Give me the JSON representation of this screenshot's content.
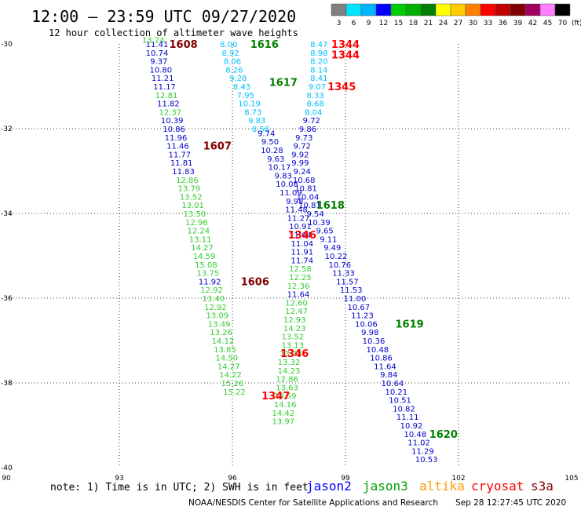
{
  "header": {
    "title": "12:00 – 23:59 UTC 09/27/2020",
    "subtitle": "12 hour collection of altimeter wave heights"
  },
  "legend": {
    "unit": "(ft)",
    "bins": [
      {
        "label": "3",
        "color": "#808080"
      },
      {
        "label": "6",
        "color": "#00e5ff"
      },
      {
        "label": "9",
        "color": "#00b4ff"
      },
      {
        "label": "12",
        "color": "#0000ff"
      },
      {
        "label": "15",
        "color": "#00cc00"
      },
      {
        "label": "18",
        "color": "#00b000"
      },
      {
        "label": "21",
        "color": "#008000"
      },
      {
        "label": "24",
        "color": "#ffff00"
      },
      {
        "label": "27",
        "color": "#ffcc00"
      },
      {
        "label": "30",
        "color": "#ff8000"
      },
      {
        "label": "33",
        "color": "#ff0000"
      },
      {
        "label": "36",
        "color": "#c00000"
      },
      {
        "label": "39",
        "color": "#800000"
      },
      {
        "label": "42",
        "color": "#a00060"
      },
      {
        "label": "45",
        "color": "#ff80ff"
      },
      {
        "label": "70",
        "color": "#000000"
      }
    ]
  },
  "map": {
    "lon_ticks": [
      "90",
      "93",
      "96",
      "99",
      "102",
      "105"
    ],
    "lat_ticks": [
      "-30",
      "-32",
      "-34",
      "-36",
      "-38",
      "-40"
    ]
  },
  "tracks": [
    {
      "id": "a",
      "color": "#00c0ff",
      "points": [
        [
          95.9,
          -30.0,
          "8.00"
        ],
        [
          95.95,
          -30.2,
          "8.92"
        ],
        [
          96.0,
          -30.4,
          "8.06"
        ],
        [
          96.05,
          -30.6,
          "8.26"
        ],
        [
          96.15,
          -30.8,
          "9.28"
        ],
        [
          96.25,
          -31.0,
          "8.43"
        ],
        [
          96.35,
          -31.2,
          "7.95"
        ],
        [
          96.45,
          -31.4,
          "10.19"
        ],
        [
          96.55,
          -31.6,
          "8.73"
        ],
        [
          96.65,
          -31.8,
          "9.83"
        ],
        [
          96.75,
          -32.0,
          "8.58"
        ]
      ]
    },
    {
      "id": "a2",
      "color": "#0000cc",
      "points": [
        [
          96.9,
          -32.1,
          "9.74"
        ],
        [
          97.0,
          -32.3,
          "9.50"
        ],
        [
          97.05,
          -32.5,
          "10.28"
        ],
        [
          97.15,
          -32.7,
          "9.63"
        ],
        [
          97.25,
          -32.9,
          "10.17"
        ],
        [
          97.35,
          -33.1,
          "9.83"
        ],
        [
          97.45,
          -33.3,
          "10.08"
        ],
        [
          97.55,
          -33.5,
          "11.09"
        ],
        [
          97.65,
          -33.7,
          "9.98"
        ],
        [
          97.7,
          -33.9,
          "11.48"
        ]
      ]
    },
    {
      "id": "b",
      "color": "#00c0ff",
      "points": [
        [
          98.3,
          -30.0,
          "8.47"
        ],
        [
          98.3,
          -30.2,
          "8.98"
        ],
        [
          98.3,
          -30.4,
          "8.20"
        ],
        [
          98.3,
          -30.6,
          "8.14"
        ],
        [
          98.3,
          -30.8,
          "8.41"
        ],
        [
          98.25,
          -31.0,
          "9.07"
        ],
        [
          98.2,
          -31.2,
          "8.33"
        ],
        [
          98.2,
          -31.4,
          "8.68"
        ],
        [
          98.15,
          -31.6,
          "8.04"
        ]
      ]
    },
    {
      "id": "b2",
      "color": "#0000cc",
      "points": [
        [
          98.1,
          -31.8,
          "9.72"
        ],
        [
          98.0,
          -32.0,
          "9.86"
        ],
        [
          97.9,
          -32.2,
          "9.73"
        ],
        [
          97.85,
          -32.4,
          "9.72"
        ],
        [
          97.8,
          -32.6,
          "9.92"
        ],
        [
          97.8,
          -32.8,
          "9.99"
        ],
        [
          97.85,
          -33.0,
          "9.24"
        ],
        [
          97.9,
          -33.2,
          "10.68"
        ],
        [
          97.95,
          -33.4,
          "10.81"
        ],
        [
          98.0,
          -33.6,
          "10.04"
        ],
        [
          98.05,
          -33.8,
          "10.81"
        ]
      ]
    },
    {
      "id": "c",
      "color": "#0000cc",
      "points": [
        [
          94.0,
          -30.0,
          "11.41"
        ],
        [
          94.0,
          -30.2,
          "10.74"
        ],
        [
          94.05,
          -30.4,
          "9.37"
        ],
        [
          94.1,
          -30.6,
          "10.80"
        ],
        [
          94.15,
          -30.8,
          "11.21"
        ],
        [
          94.2,
          -31.0,
          "11.17"
        ],
        [
          94.3,
          -31.4,
          "11.82"
        ],
        [
          94.4,
          -31.8,
          "10.39"
        ],
        [
          94.45,
          -32.0,
          "10.86"
        ],
        [
          94.5,
          -32.2,
          "11.96"
        ],
        [
          94.55,
          -32.4,
          "11.46"
        ],
        [
          94.6,
          -32.6,
          "11.77"
        ],
        [
          94.65,
          -32.8,
          "11.81"
        ],
        [
          94.7,
          -33.0,
          "11.83"
        ]
      ]
    },
    {
      "id": "c2",
      "color": "#33cc33",
      "points": [
        [
          93.9,
          -29.9,
          "13.24"
        ],
        [
          94.25,
          -31.2,
          "12.81"
        ],
        [
          94.35,
          -31.6,
          "12.37"
        ],
        [
          94.8,
          -33.2,
          "12.86"
        ],
        [
          94.85,
          -33.4,
          "13.79"
        ],
        [
          94.9,
          -33.6,
          "13.52"
        ],
        [
          94.95,
          -33.8,
          "13.01"
        ],
        [
          95.0,
          -34.0,
          "13.50"
        ],
        [
          95.05,
          -34.2,
          "12.96"
        ],
        [
          95.1,
          -34.4,
          "12.24"
        ],
        [
          95.15,
          -34.6,
          "13.11"
        ],
        [
          95.2,
          -34.8,
          "14.27"
        ],
        [
          95.25,
          -35.0,
          "14.59"
        ],
        [
          95.3,
          -35.2,
          "15.08"
        ],
        [
          95.35,
          -35.4,
          "13.75"
        ]
      ]
    },
    {
      "id": "c3",
      "color": "#0000cc",
      "points": [
        [
          95.4,
          -35.6,
          "11.92"
        ]
      ]
    },
    {
      "id": "c4",
      "color": "#33cc33",
      "points": [
        [
          95.45,
          -35.8,
          "12.92"
        ],
        [
          95.5,
          -36.0,
          "13.40"
        ],
        [
          95.55,
          -36.2,
          "12.92"
        ],
        [
          95.6,
          -36.4,
          "13.09"
        ],
        [
          95.65,
          -36.6,
          "13.49"
        ],
        [
          95.7,
          -36.8,
          "13.26"
        ],
        [
          95.75,
          -37.0,
          "14.12"
        ],
        [
          95.8,
          -37.2,
          "13.85"
        ],
        [
          95.85,
          -37.4,
          "14.50"
        ],
        [
          95.9,
          -37.6,
          "14.27"
        ],
        [
          95.95,
          -37.8,
          "14.22"
        ],
        [
          96.0,
          -38.0,
          "15.26"
        ],
        [
          96.05,
          -38.2,
          "15.22"
        ]
      ]
    },
    {
      "id": "d",
      "color": "#0000cc",
      "points": [
        [
          97.75,
          -34.1,
          "11.27"
        ],
        [
          97.8,
          -34.3,
          "10.91"
        ],
        [
          97.8,
          -34.5,
          "11.64"
        ],
        [
          97.85,
          -34.7,
          "11.04"
        ],
        [
          97.85,
          -34.9,
          "11.91"
        ],
        [
          97.85,
          -35.1,
          "11.74"
        ]
      ]
    },
    {
      "id": "d2",
      "color": "#33cc33",
      "points": [
        [
          97.8,
          -35.3,
          "12.58"
        ],
        [
          97.8,
          -35.5,
          "12.25"
        ],
        [
          97.75,
          -35.7,
          "12.36"
        ]
      ]
    },
    {
      "id": "d3",
      "color": "#0000cc",
      "points": [
        [
          97.75,
          -35.9,
          "11.64"
        ]
      ]
    },
    {
      "id": "d4",
      "color": "#33cc33",
      "points": [
        [
          97.7,
          -36.1,
          "12.60"
        ],
        [
          97.7,
          -36.3,
          "12.47"
        ],
        [
          97.65,
          -36.5,
          "12.93"
        ],
        [
          97.65,
          -36.7,
          "14.23"
        ],
        [
          97.6,
          -36.9,
          "13.52"
        ],
        [
          97.6,
          -37.1,
          "13.13"
        ],
        [
          97.55,
          -37.3,
          "13.33"
        ],
        [
          97.5,
          -37.5,
          "13.32"
        ],
        [
          97.5,
          -37.7,
          "14.23"
        ],
        [
          97.45,
          -37.9,
          "12.86"
        ],
        [
          97.45,
          -38.1,
          "13.63"
        ],
        [
          97.4,
          -38.3,
          "13.59"
        ],
        [
          97.4,
          -38.5,
          "14.16"
        ],
        [
          97.35,
          -38.7,
          "14.42"
        ],
        [
          97.35,
          -38.9,
          "13.97"
        ]
      ]
    },
    {
      "id": "e",
      "color": "#0000cc",
      "points": [
        [
          98.2,
          -34.0,
          "9.54"
        ],
        [
          98.3,
          -34.2,
          "10.39"
        ],
        [
          98.45,
          -34.4,
          "9.65"
        ],
        [
          98.55,
          -34.6,
          "9.11"
        ],
        [
          98.65,
          -34.8,
          "9.49"
        ],
        [
          98.75,
          -35.0,
          "10.22"
        ],
        [
          98.85,
          -35.2,
          "10.76"
        ],
        [
          98.95,
          -35.4,
          "11.33"
        ],
        [
          99.05,
          -35.6,
          "11.57"
        ],
        [
          99.15,
          -35.8,
          "11.53"
        ],
        [
          99.25,
          -36.0,
          "11.00"
        ],
        [
          99.35,
          -36.2,
          "10.67"
        ],
        [
          99.45,
          -36.4,
          "11.23"
        ],
        [
          99.55,
          -36.6,
          "10.06"
        ],
        [
          99.65,
          -36.8,
          "9.98"
        ],
        [
          99.75,
          -37.0,
          "10.36"
        ],
        [
          99.85,
          -37.2,
          "10.48"
        ],
        [
          99.95,
          -37.4,
          "10.86"
        ],
        [
          100.05,
          -37.6,
          "11.64"
        ],
        [
          100.15,
          -37.8,
          "9.84"
        ],
        [
          100.25,
          -38.0,
          "10.64"
        ],
        [
          100.35,
          -38.2,
          "10.21"
        ],
        [
          100.45,
          -38.4,
          "10.51"
        ],
        [
          100.55,
          -38.6,
          "10.82"
        ],
        [
          100.65,
          -38.8,
          "11.11"
        ],
        [
          100.75,
          -39.0,
          "10.92"
        ],
        [
          100.85,
          -39.2,
          "10.48"
        ],
        [
          100.95,
          -39.4,
          "11.02"
        ],
        [
          101.05,
          -39.6,
          "11.29"
        ],
        [
          101.15,
          -39.8,
          "10.53"
        ]
      ]
    }
  ],
  "pass_labels": [
    {
      "text": "1608",
      "color": "#800000",
      "lon": 94.7,
      "lat": -30.0
    },
    {
      "text": "1607",
      "color": "#800000",
      "lon": 95.6,
      "lat": -32.4
    },
    {
      "text": "1606",
      "color": "#800000",
      "lon": 96.6,
      "lat": -35.6
    },
    {
      "text": "1616",
      "color": "#008000",
      "lon": 96.85,
      "lat": -30.0
    },
    {
      "text": "1617",
      "color": "#008000",
      "lon": 97.35,
      "lat": -30.9
    },
    {
      "text": "1618",
      "color": "#008000",
      "lon": 98.6,
      "lat": -33.8
    },
    {
      "text": "1619",
      "color": "#008000",
      "lon": 100.7,
      "lat": -36.6
    },
    {
      "text": "1620",
      "color": "#008000",
      "lon": 101.6,
      "lat": -39.2
    },
    {
      "text": "1344",
      "color": "#ff0000",
      "lon": 99.0,
      "lat": -30.0
    },
    {
      "text": "1344",
      "color": "#ff0000",
      "lon": 99.0,
      "lat": -30.25
    },
    {
      "text": "1345",
      "color": "#ff0000",
      "lon": 98.9,
      "lat": -31.0
    },
    {
      "text": "1346",
      "color": "#ff0000",
      "lon": 97.85,
      "lat": -34.5
    },
    {
      "text": "1346",
      "color": "#ff0000",
      "lon": 97.65,
      "lat": -37.3
    },
    {
      "text": "1347",
      "color": "#ff0000",
      "lon": 97.15,
      "lat": -38.3
    }
  ],
  "footer": {
    "note": "note:  1) Time is in UTC; 2) SWH is in feet",
    "missions": [
      {
        "name": "jason2",
        "color": "#0000ff"
      },
      {
        "name": "jason3",
        "color": "#00a000"
      },
      {
        "name": "altika",
        "color": "#ff9900"
      },
      {
        "name": "cryosat",
        "color": "#ff0000"
      },
      {
        "name": "s3a",
        "color": "#800000"
      }
    ],
    "credit": "NOAA/NESDIS Center for Satellite Applications and Research",
    "timestamp": "Sep 28 12:27:45 UTC 2020"
  }
}
